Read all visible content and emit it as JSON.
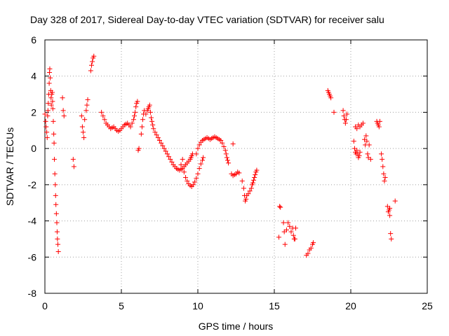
{
  "chart_data": {
    "type": "scatter",
    "title": "Day 328 of 2017, Sidereal Day-to-day VTEC variation (SDTVAR) for receiver salu",
    "xlabel": "GPS time / hours",
    "ylabel": "SDTVAR / TECUs",
    "xlim": [
      0,
      25
    ],
    "ylim": [
      -8,
      6
    ],
    "xticks": [
      0,
      5,
      10,
      15,
      20,
      25
    ],
    "yticks": [
      -8,
      -6,
      -4,
      -2,
      0,
      2,
      4,
      6
    ],
    "grid": true,
    "marker": "plus",
    "color": "#ff0000",
    "series": [
      {
        "name": "SDTVAR",
        "points": [
          [
            0.0,
            1.9
          ],
          [
            0.05,
            1.5
          ],
          [
            0.08,
            1.2
          ],
          [
            0.12,
            0.9
          ],
          [
            0.15,
            0.6
          ],
          [
            0.18,
            1.8
          ],
          [
            0.2,
            2.1
          ],
          [
            0.22,
            2.5
          ],
          [
            0.25,
            3.0
          ],
          [
            0.28,
            3.6
          ],
          [
            0.3,
            4.2
          ],
          [
            0.32,
            4.4
          ],
          [
            0.35,
            3.9
          ],
          [
            0.38,
            3.2
          ],
          [
            0.4,
            2.8
          ],
          [
            0.42,
            2.4
          ],
          [
            0.45,
            3.0
          ],
          [
            0.48,
            3.1
          ],
          [
            0.5,
            2.6
          ],
          [
            0.52,
            2.2
          ],
          [
            0.55,
            1.5
          ],
          [
            0.58,
            0.8
          ],
          [
            0.6,
            0.3
          ],
          [
            0.62,
            -0.6
          ],
          [
            0.65,
            -1.4
          ],
          [
            0.68,
            -2.0
          ],
          [
            0.7,
            -2.6
          ],
          [
            0.72,
            -3.1
          ],
          [
            0.75,
            -3.6
          ],
          [
            0.78,
            -4.1
          ],
          [
            0.8,
            -4.6
          ],
          [
            0.82,
            -5.0
          ],
          [
            0.85,
            -5.3
          ],
          [
            0.88,
            -5.7
          ],
          [
            1.15,
            2.8
          ],
          [
            1.2,
            2.1
          ],
          [
            1.25,
            1.8
          ],
          [
            1.85,
            -0.6
          ],
          [
            1.9,
            -1.0
          ],
          [
            2.4,
            1.8
          ],
          [
            2.45,
            1.2
          ],
          [
            2.5,
            0.9
          ],
          [
            2.55,
            0.6
          ],
          [
            2.6,
            1.6
          ],
          [
            2.7,
            2.1
          ],
          [
            2.75,
            2.4
          ],
          [
            2.8,
            2.7
          ],
          [
            3.0,
            4.3
          ],
          [
            3.05,
            4.6
          ],
          [
            3.1,
            4.8
          ],
          [
            3.15,
            5.0
          ],
          [
            3.2,
            5.1
          ],
          [
            3.7,
            2.0
          ],
          [
            3.8,
            1.8
          ],
          [
            3.9,
            1.6
          ],
          [
            4.0,
            1.4
          ],
          [
            4.1,
            1.3
          ],
          [
            4.2,
            1.2
          ],
          [
            4.3,
            1.1
          ],
          [
            4.4,
            1.15
          ],
          [
            4.5,
            1.2
          ],
          [
            4.6,
            1.1
          ],
          [
            4.7,
            1.0
          ],
          [
            4.8,
            0.95
          ],
          [
            4.9,
            1.0
          ],
          [
            5.0,
            1.1
          ],
          [
            5.1,
            1.2
          ],
          [
            5.2,
            1.3
          ],
          [
            5.3,
            1.35
          ],
          [
            5.4,
            1.4
          ],
          [
            5.5,
            1.3
          ],
          [
            5.6,
            1.2
          ],
          [
            5.7,
            1.4
          ],
          [
            5.8,
            1.6
          ],
          [
            5.85,
            1.8
          ],
          [
            5.9,
            2.0
          ],
          [
            5.95,
            2.3
          ],
          [
            6.0,
            2.5
          ],
          [
            6.05,
            2.6
          ],
          [
            6.1,
            -0.1
          ],
          [
            6.15,
            0.0
          ],
          [
            6.3,
            0.8
          ],
          [
            6.35,
            1.2
          ],
          [
            6.4,
            1.6
          ],
          [
            6.45,
            1.9
          ],
          [
            6.5,
            2.1
          ],
          [
            6.6,
            1.9
          ],
          [
            6.7,
            2.1
          ],
          [
            6.75,
            2.2
          ],
          [
            6.8,
            2.3
          ],
          [
            6.85,
            2.4
          ],
          [
            6.9,
            2.0
          ],
          [
            6.95,
            1.7
          ],
          [
            7.0,
            1.5
          ],
          [
            7.05,
            1.3
          ],
          [
            7.1,
            1.1
          ],
          [
            7.2,
            0.9
          ],
          [
            7.3,
            0.75
          ],
          [
            7.4,
            0.6
          ],
          [
            7.5,
            0.45
          ],
          [
            7.6,
            0.3
          ],
          [
            7.7,
            0.15
          ],
          [
            7.8,
            0.0
          ],
          [
            7.9,
            -0.15
          ],
          [
            8.0,
            -0.3
          ],
          [
            8.1,
            -0.45
          ],
          [
            8.2,
            -0.6
          ],
          [
            8.3,
            -0.75
          ],
          [
            8.4,
            -0.9
          ],
          [
            8.5,
            -1.0
          ],
          [
            8.6,
            -1.1
          ],
          [
            8.7,
            -1.15
          ],
          [
            8.8,
            -1.2
          ],
          [
            8.9,
            -1.15
          ],
          [
            9.0,
            -1.1
          ],
          [
            9.1,
            -1.0
          ],
          [
            9.2,
            -0.9
          ],
          [
            9.3,
            -0.8
          ],
          [
            9.4,
            -0.7
          ],
          [
            9.5,
            -0.6
          ],
          [
            9.55,
            -0.5
          ],
          [
            9.6,
            -0.4
          ],
          [
            9.65,
            -0.3
          ],
          [
            8.9,
            -0.9
          ],
          [
            9.0,
            -0.6
          ],
          [
            9.1,
            -1.3
          ],
          [
            9.2,
            -1.6
          ],
          [
            9.3,
            -1.8
          ],
          [
            9.4,
            -1.95
          ],
          [
            9.5,
            -2.05
          ],
          [
            9.6,
            -2.1
          ],
          [
            9.7,
            -2.0
          ],
          [
            9.8,
            -1.85
          ],
          [
            9.9,
            -1.65
          ],
          [
            10.0,
            -1.4
          ],
          [
            10.1,
            -1.1
          ],
          [
            10.2,
            -0.85
          ],
          [
            10.3,
            -0.65
          ],
          [
            10.35,
            -0.5
          ],
          [
            9.9,
            -0.3
          ],
          [
            10.0,
            0.0
          ],
          [
            10.1,
            0.2
          ],
          [
            10.2,
            0.35
          ],
          [
            10.3,
            0.45
          ],
          [
            10.4,
            0.5
          ],
          [
            10.5,
            0.55
          ],
          [
            10.6,
            0.6
          ],
          [
            10.7,
            0.55
          ],
          [
            10.8,
            0.5
          ],
          [
            10.9,
            0.55
          ],
          [
            11.0,
            0.6
          ],
          [
            11.1,
            0.65
          ],
          [
            11.2,
            0.6
          ],
          [
            11.3,
            0.55
          ],
          [
            11.4,
            0.5
          ],
          [
            11.5,
            0.45
          ],
          [
            11.6,
            0.3
          ],
          [
            11.7,
            0.1
          ],
          [
            11.8,
            -0.1
          ],
          [
            11.85,
            -0.3
          ],
          [
            11.9,
            -0.5
          ],
          [
            11.95,
            -0.65
          ],
          [
            12.0,
            -0.8
          ],
          [
            12.3,
            0.25
          ],
          [
            12.2,
            -1.4
          ],
          [
            12.3,
            -1.5
          ],
          [
            12.4,
            -1.45
          ],
          [
            12.5,
            -1.4
          ],
          [
            12.6,
            -1.3
          ],
          [
            12.7,
            -1.35
          ],
          [
            12.9,
            -1.8
          ],
          [
            13.0,
            -2.2
          ],
          [
            13.05,
            -2.6
          ],
          [
            13.1,
            -2.9
          ],
          [
            13.15,
            -2.8
          ],
          [
            13.2,
            -2.6
          ],
          [
            13.3,
            -2.5
          ],
          [
            13.4,
            -2.35
          ],
          [
            13.5,
            -2.2
          ],
          [
            13.55,
            -2.0
          ],
          [
            13.6,
            -1.9
          ],
          [
            13.65,
            -1.75
          ],
          [
            13.7,
            -1.6
          ],
          [
            13.75,
            -1.45
          ],
          [
            13.8,
            -1.3
          ],
          [
            13.85,
            -1.2
          ],
          [
            15.3,
            -4.9
          ],
          [
            15.35,
            -3.2
          ],
          [
            15.4,
            -3.25
          ],
          [
            15.6,
            -4.1
          ],
          [
            15.65,
            -4.6
          ],
          [
            15.7,
            -5.3
          ],
          [
            15.8,
            -4.5
          ],
          [
            15.9,
            -4.1
          ],
          [
            16.0,
            -4.3
          ],
          [
            16.1,
            -4.6
          ],
          [
            16.2,
            -4.4
          ],
          [
            16.25,
            -4.8
          ],
          [
            16.3,
            -5.0
          ],
          [
            16.35,
            -5.0
          ],
          [
            16.4,
            -4.4
          ],
          [
            17.1,
            -5.9
          ],
          [
            17.2,
            -5.8
          ],
          [
            17.3,
            -5.6
          ],
          [
            17.4,
            -5.5
          ],
          [
            17.5,
            -5.3
          ],
          [
            17.55,
            -5.2
          ],
          [
            18.5,
            3.2
          ],
          [
            18.55,
            3.1
          ],
          [
            18.6,
            3.0
          ],
          [
            18.65,
            2.9
          ],
          [
            18.7,
            2.8
          ],
          [
            18.9,
            2.0
          ],
          [
            19.5,
            2.1
          ],
          [
            19.55,
            1.8
          ],
          [
            19.6,
            1.6
          ],
          [
            19.65,
            1.4
          ],
          [
            19.7,
            1.6
          ],
          [
            19.75,
            1.9
          ],
          [
            20.2,
            0.4
          ],
          [
            20.25,
            0.0
          ],
          [
            20.3,
            -0.2
          ],
          [
            20.35,
            -0.3
          ],
          [
            20.4,
            -0.1
          ],
          [
            20.45,
            -0.3
          ],
          [
            20.5,
            -0.5
          ],
          [
            20.55,
            -0.4
          ],
          [
            20.6,
            -0.2
          ],
          [
            20.3,
            1.2
          ],
          [
            20.4,
            1.1
          ],
          [
            20.5,
            1.3
          ],
          [
            20.6,
            1.2
          ],
          [
            20.7,
            1.3
          ],
          [
            20.8,
            1.4
          ],
          [
            20.9,
            0.5
          ],
          [
            20.95,
            0.2
          ],
          [
            21.0,
            0.7
          ],
          [
            21.05,
            0.4
          ],
          [
            21.1,
            -0.3
          ],
          [
            21.15,
            -0.5
          ],
          [
            21.2,
            0.2
          ],
          [
            21.3,
            -0.6
          ],
          [
            21.7,
            1.5
          ],
          [
            21.75,
            1.4
          ],
          [
            21.8,
            1.3
          ],
          [
            21.85,
            1.2
          ],
          [
            21.9,
            1.5
          ],
          [
            22.0,
            -0.3
          ],
          [
            22.05,
            -0.6
          ],
          [
            22.1,
            -1.0
          ],
          [
            22.15,
            -1.4
          ],
          [
            22.2,
            -1.8
          ],
          [
            22.25,
            -1.6
          ],
          [
            22.4,
            -3.2
          ],
          [
            22.45,
            -3.5
          ],
          [
            22.5,
            -3.4
          ],
          [
            22.55,
            -3.7
          ],
          [
            22.6,
            -4.7
          ],
          [
            22.65,
            -5.0
          ],
          [
            22.55,
            -3.3
          ],
          [
            22.9,
            -2.9
          ]
        ]
      }
    ]
  }
}
